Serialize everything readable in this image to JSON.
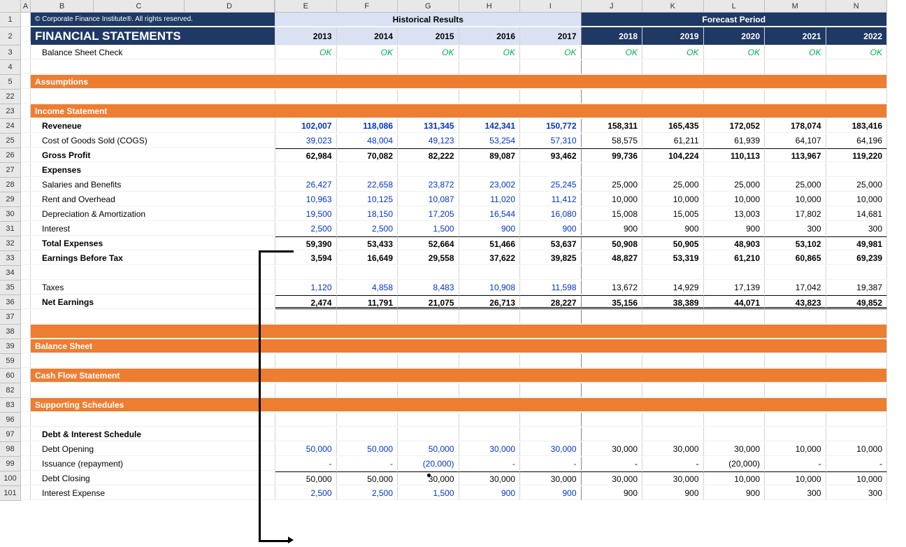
{
  "columns": [
    "A",
    "B",
    "C",
    "D",
    "E",
    "F",
    "G",
    "H",
    "I",
    "J",
    "K",
    "L",
    "M",
    "N"
  ],
  "copyright": "© Corporate Finance Institute®. All rights reserved.",
  "title": "FINANCIAL STATEMENTS",
  "hist_label": "Historical Results",
  "fcst_label": "Forecast Period",
  "years": [
    "2013",
    "2014",
    "2015",
    "2016",
    "2017",
    "2018",
    "2019",
    "2020",
    "2021",
    "2022"
  ],
  "bsc_label": "Balance Sheet Check",
  "ok": [
    "OK",
    "OK",
    "OK",
    "OK",
    "OK",
    "OK",
    "OK",
    "OK",
    "OK",
    "OK"
  ],
  "sections": {
    "assumptions": "Assumptions",
    "income": "Income Statement",
    "balance": "Balance Sheet",
    "cashflow": "Cash Flow Statement",
    "supporting": "Supporting Schedules"
  },
  "rows": {
    "revenue": {
      "label": "Reveneue",
      "hist": [
        "102,007",
        "118,086",
        "131,345",
        "142,341",
        "150,772"
      ],
      "fcst": [
        "158,311",
        "165,435",
        "172,052",
        "178,074",
        "183,416"
      ]
    },
    "cogs": {
      "label": "Cost of Goods Sold (COGS)",
      "hist": [
        "39,023",
        "48,004",
        "49,123",
        "53,254",
        "57,310"
      ],
      "fcst": [
        "58,575",
        "61,211",
        "61,939",
        "64,107",
        "64,196"
      ]
    },
    "gross": {
      "label": "Gross Profit",
      "hist": [
        "62,984",
        "70,082",
        "82,222",
        "89,087",
        "93,462"
      ],
      "fcst": [
        "99,736",
        "104,224",
        "110,113",
        "113,967",
        "119,220"
      ]
    },
    "expenses": {
      "label": "Expenses"
    },
    "salaries": {
      "label": "Salaries and Benefits",
      "hist": [
        "26,427",
        "22,658",
        "23,872",
        "23,002",
        "25,245"
      ],
      "fcst": [
        "25,000",
        "25,000",
        "25,000",
        "25,000",
        "25,000"
      ]
    },
    "rent": {
      "label": "Rent and Overhead",
      "hist": [
        "10,963",
        "10,125",
        "10,087",
        "11,020",
        "11,412"
      ],
      "fcst": [
        "10,000",
        "10,000",
        "10,000",
        "10,000",
        "10,000"
      ]
    },
    "depr": {
      "label": "Depreciation & Amortization",
      "hist": [
        "19,500",
        "18,150",
        "17,205",
        "16,544",
        "16,080"
      ],
      "fcst": [
        "15,008",
        "15,005",
        "13,003",
        "17,802",
        "14,681"
      ]
    },
    "interest": {
      "label": "Interest",
      "hist": [
        "2,500",
        "2,500",
        "1,500",
        "900",
        "900"
      ],
      "fcst": [
        "900",
        "900",
        "900",
        "300",
        "300"
      ]
    },
    "totexp": {
      "label": "Total Expenses",
      "hist": [
        "59,390",
        "53,433",
        "52,664",
        "51,466",
        "53,637"
      ],
      "fcst": [
        "50,908",
        "50,905",
        "48,903",
        "53,102",
        "49,981"
      ]
    },
    "ebt": {
      "label": "Earnings Before Tax",
      "hist": [
        "3,594",
        "16,649",
        "29,558",
        "37,622",
        "39,825"
      ],
      "fcst": [
        "48,827",
        "53,319",
        "61,210",
        "60,865",
        "69,239"
      ]
    },
    "taxes": {
      "label": "Taxes",
      "hist": [
        "1,120",
        "4,858",
        "8,483",
        "10,908",
        "11,598"
      ],
      "fcst": [
        "13,672",
        "14,929",
        "17,139",
        "17,042",
        "19,387"
      ]
    },
    "netearn": {
      "label": "Net Earnings",
      "hist": [
        "2,474",
        "11,791",
        "21,075",
        "26,713",
        "28,227"
      ],
      "fcst": [
        "35,156",
        "38,389",
        "44,071",
        "43,823",
        "49,852"
      ]
    },
    "debtsched": {
      "label": "Debt & Interest Schedule"
    },
    "debtopen": {
      "label": "Debt Opening",
      "hist": [
        "50,000",
        "50,000",
        "50,000",
        "30,000",
        "30,000"
      ],
      "fcst": [
        "30,000",
        "30,000",
        "30,000",
        "10,000",
        "10,000"
      ]
    },
    "issuance": {
      "label": "Issuance (repayment)",
      "hist": [
        "-",
        "-",
        "(20,000)",
        "-",
        "-"
      ],
      "fcst": [
        "-",
        "-",
        "(20,000)",
        "-",
        "-"
      ]
    },
    "debtclose": {
      "label": "Debt Closing",
      "hist": [
        "50,000",
        "50,000",
        "30,000",
        "30,000",
        "30,000"
      ],
      "fcst": [
        "30,000",
        "30,000",
        "10,000",
        "10,000",
        "10,000"
      ]
    },
    "intexp": {
      "label": "Interest Expense",
      "hist": [
        "2,500",
        "2,500",
        "1,500",
        "900",
        "900"
      ],
      "fcst": [
        "900",
        "900",
        "900",
        "300",
        "300"
      ]
    }
  },
  "row_numbers": [
    "1",
    "2",
    "3",
    "4",
    "5",
    "22",
    "23",
    "24",
    "25",
    "26",
    "27",
    "28",
    "29",
    "30",
    "31",
    "32",
    "33",
    "34",
    "35",
    "36",
    "37",
    "38",
    "39",
    "59",
    "60",
    "82",
    "83",
    "96",
    "97",
    "98",
    "99",
    "100",
    "101"
  ],
  "colors": {
    "navy": "#1f3864",
    "lightblue": "#d9e1f2",
    "orange": "#ed7d31",
    "blue_text": "#0033cc",
    "green_text": "#00b050",
    "grid": "#d4d4d4",
    "header_bg": "#e8e8e8"
  }
}
